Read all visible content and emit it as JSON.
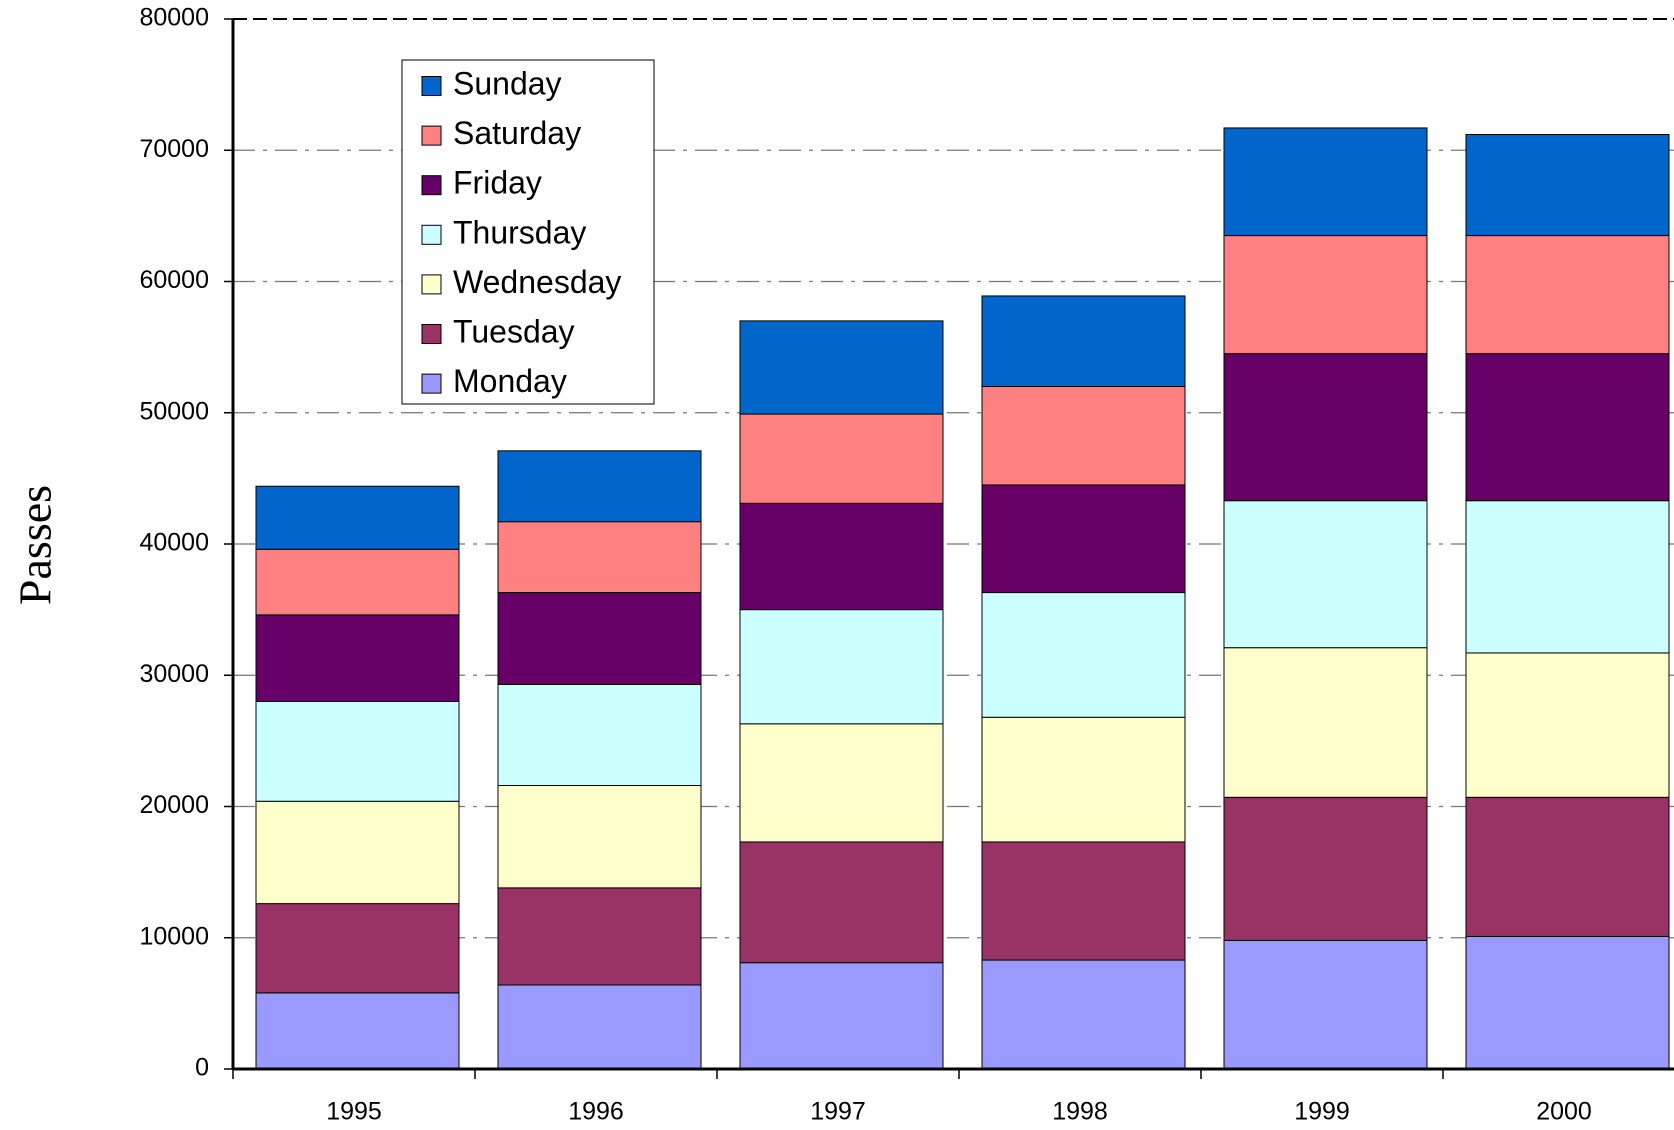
{
  "chart_data": {
    "type": "stacked_bar",
    "y_label": "Passes",
    "categories": [
      "1995",
      "1996",
      "1997",
      "1998",
      "1999",
      "2000"
    ],
    "series": [
      {
        "name": "Monday",
        "color": "#9999ff",
        "values": [
          5800,
          6400,
          8100,
          8300,
          9800,
          10100
        ]
      },
      {
        "name": "Tuesday",
        "color": "#993366",
        "values": [
          6800,
          7400,
          9200,
          9000,
          10900,
          10600
        ]
      },
      {
        "name": "Wednesday",
        "color": "#ffffcc",
        "values": [
          7800,
          7800,
          9000,
          9500,
          11400,
          11000
        ]
      },
      {
        "name": "Thursday",
        "color": "#ccffff",
        "values": [
          7600,
          7700,
          8700,
          9500,
          11200,
          11600
        ]
      },
      {
        "name": "Friday",
        "color": "#660066",
        "values": [
          6600,
          7000,
          8100,
          8200,
          11200,
          11200
        ]
      },
      {
        "name": "Saturday",
        "color": "#ff8080",
        "values": [
          5000,
          5400,
          6800,
          7500,
          9000,
          9000
        ]
      },
      {
        "name": "Sunday",
        "color": "#0066cc",
        "values": [
          4800,
          5400,
          7100,
          6900,
          8200,
          7700
        ]
      }
    ],
    "ylim": [
      0,
      80000
    ],
    "yticks": [
      0,
      10000,
      20000,
      30000,
      40000,
      50000,
      60000,
      70000,
      80000
    ],
    "grid": true,
    "legend": "upper left"
  }
}
